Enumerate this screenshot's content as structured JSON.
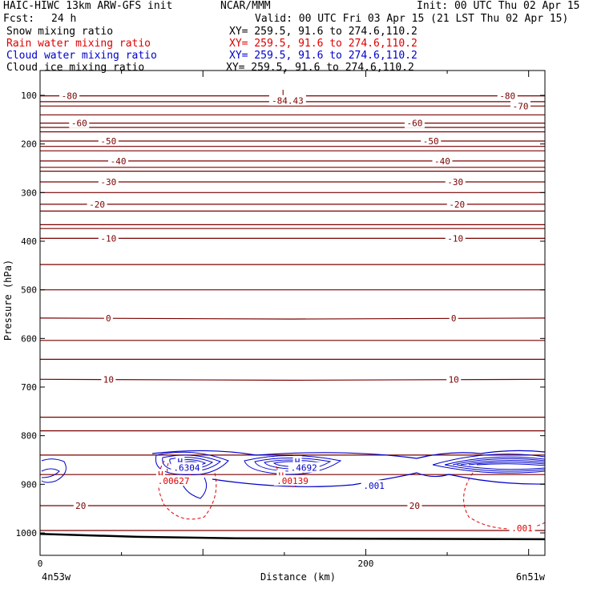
{
  "header": {
    "model": "HAIC-HIWC 13km ARW-GFS init",
    "org": "NCAR/MMM",
    "init": "Init: 00 UTC Thu 02 Apr 15",
    "fcst_label": "Fcst:",
    "fcst_value": "24 h",
    "valid": "Valid: 00 UTC Fri 03 Apr 15 (21 LST Thu 02 Apr 15)"
  },
  "fields": [
    {
      "name": "Snow mixing ratio",
      "xy": "XY= 259.5, 91.6 to 274.6,110.2",
      "color": "#000000"
    },
    {
      "name": "Rain water mixing ratio",
      "xy": "XY= 259.5, 91.6 to 274.6,110.2",
      "color": "#dd0000"
    },
    {
      "name": "Cloud water mixing ratio",
      "xy": "XY= 259.5, 91.6 to 274.6,110.2",
      "color": "#0000cc"
    },
    {
      "name": "Cloud ice mixing ratio",
      "xy": "XY= 259.5, 91.6 to 274.6,110.2",
      "color": "#000000"
    }
  ],
  "colors": {
    "temperature": "#7a0000",
    "rain": "#dd0000",
    "cloud": "#0000cc",
    "terrain": "#000000"
  },
  "chart_data": {
    "type": "line",
    "xlabel": "Distance (km)",
    "ylabel": "Pressure (hPa)",
    "xlim": [
      0,
      310
    ],
    "ylim": [
      1050,
      80
    ],
    "x_ticks": [
      "0",
      "200"
    ],
    "y_ticks": [
      "100",
      "200",
      "300",
      "400",
      "500",
      "600",
      "700",
      "800",
      "900",
      "1000"
    ],
    "left_endpoint": "4n53w",
    "right_endpoint": "6n51w",
    "temperature_contours": [
      {
        "label": "-80",
        "p": [
          101,
          101,
          101
        ],
        "labels": [
          {
            "x": 18,
            "text": "-80"
          },
          {
            "x": 287,
            "text": "-80"
          }
        ]
      },
      {
        "label": "-70",
        "p": [
          122,
          122,
          122
        ],
        "labels": [
          {
            "x": 295,
            "text": "-70"
          }
        ]
      },
      {
        "label": "-60",
        "p": [
          157,
          157,
          157
        ],
        "labels": [
          {
            "x": 24,
            "text": "-60"
          },
          {
            "x": 230,
            "text": "-60"
          }
        ]
      },
      {
        "label": "-50",
        "p": [
          194,
          194,
          194
        ],
        "labels": [
          {
            "x": 42,
            "text": "-50"
          },
          {
            "x": 240,
            "text": "-50"
          }
        ]
      },
      {
        "label": "-40",
        "p": [
          235,
          235,
          235
        ],
        "labels": [
          {
            "x": 48,
            "text": "-40"
          },
          {
            "x": 247,
            "text": "-40"
          }
        ]
      },
      {
        "label": "-30",
        "p": [
          278,
          278,
          278
        ],
        "labels": [
          {
            "x": 42,
            "text": "-30"
          },
          {
            "x": 255,
            "text": "-30"
          }
        ]
      },
      {
        "label": "-20",
        "p": [
          324,
          324,
          324
        ],
        "labels": [
          {
            "x": 35,
            "text": "-20"
          },
          {
            "x": 256,
            "text": "-20"
          }
        ]
      },
      {
        "label": "-10",
        "p": [
          394,
          394,
          394
        ],
        "labels": [
          {
            "x": 42,
            "text": "-10"
          },
          {
            "x": 255,
            "text": "-10"
          }
        ]
      },
      {
        "label": "0",
        "p": [
          558,
          560,
          558
        ],
        "labels": [
          {
            "x": 42,
            "text": "0"
          },
          {
            "x": 254,
            "text": "0"
          }
        ]
      },
      {
        "label": "10",
        "p": [
          684,
          686,
          684
        ],
        "labels": [
          {
            "x": 42,
            "text": "10"
          },
          {
            "x": 254,
            "text": "10"
          }
        ]
      },
      {
        "label": "20",
        "p": [
          944,
          944,
          944
        ],
        "labels": [
          {
            "x": 25,
            "text": "20"
          },
          {
            "x": 230,
            "text": "20"
          }
        ]
      }
    ],
    "temperature_min": {
      "x": 150,
      "p": 95,
      "marker": "L",
      "value": "-84.43"
    },
    "rain_labels": [
      {
        "x": 74,
        "p": 880,
        "text": "H"
      },
      {
        "x": 82,
        "p": 893,
        "text": ".00627"
      },
      {
        "x": 148,
        "p": 882,
        "text": "H"
      },
      {
        "x": 155,
        "p": 893,
        "text": ".00139"
      },
      {
        "x": 296,
        "p": 990,
        "text": ".001"
      }
    ],
    "cloud_labels": [
      {
        "x": 86,
        "p": 853,
        "text": "H"
      },
      {
        "x": 90,
        "p": 866,
        "text": ".6304"
      },
      {
        "x": 158,
        "p": 853,
        "text": "H"
      },
      {
        "x": 162,
        "p": 866,
        "text": ".4692"
      },
      {
        "x": 205,
        "p": 903,
        "text": ".001"
      }
    ],
    "surface": {
      "x": [
        0,
        60,
        120,
        310
      ],
      "p": [
        1002,
        1008,
        1011,
        1013
      ]
    }
  }
}
